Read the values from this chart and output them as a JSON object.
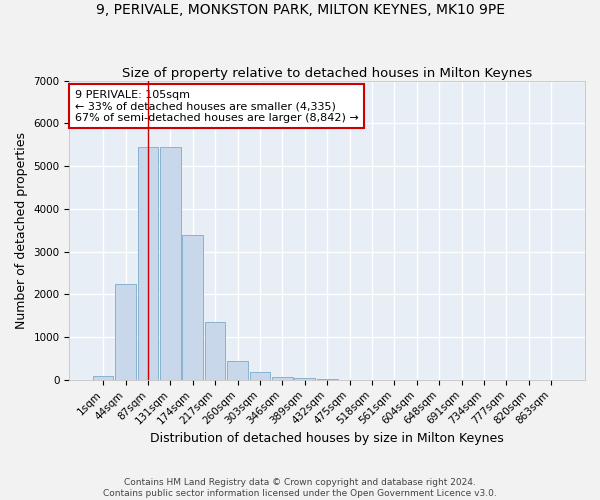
{
  "title1": "9, PERIVALE, MONKSTON PARK, MILTON KEYNES, MK10 9PE",
  "title2": "Size of property relative to detached houses in Milton Keynes",
  "xlabel": "Distribution of detached houses by size in Milton Keynes",
  "ylabel": "Number of detached properties",
  "categories": [
    "1sqm",
    "44sqm",
    "87sqm",
    "131sqm",
    "174sqm",
    "217sqm",
    "260sqm",
    "303sqm",
    "346sqm",
    "389sqm",
    "432sqm",
    "475sqm",
    "518sqm",
    "561sqm",
    "604sqm",
    "648sqm",
    "691sqm",
    "734sqm",
    "777sqm",
    "820sqm",
    "863sqm"
  ],
  "bar_heights": [
    80,
    2250,
    5450,
    5450,
    3400,
    1350,
    450,
    175,
    75,
    50,
    10,
    0,
    0,
    0,
    0,
    0,
    0,
    0,
    0,
    0,
    0
  ],
  "bar_color": "#c8d8ea",
  "bar_edge_color": "#7aaac8",
  "vline_x_index": 2,
  "vline_color": "#cc0000",
  "annotation_text": "9 PERIVALE: 105sqm\n← 33% of detached houses are smaller (4,335)\n67% of semi-detached houses are larger (8,842) →",
  "annotation_box_color": "white",
  "annotation_box_edge_color": "#cc0000",
  "ylim": [
    0,
    7000
  ],
  "yticks": [
    0,
    1000,
    2000,
    3000,
    4000,
    5000,
    6000,
    7000
  ],
  "footer1": "Contains HM Land Registry data © Crown copyright and database right 2024.",
  "footer2": "Contains public sector information licensed under the Open Government Licence v3.0.",
  "background_color": "#f2f2f2",
  "plot_bg_color": "#e8eef5",
  "grid_color": "white",
  "title1_fontsize": 10,
  "title2_fontsize": 9.5,
  "axis_label_fontsize": 9,
  "tick_fontsize": 7.5,
  "footer_fontsize": 6.5,
  "ann_fontsize": 8
}
